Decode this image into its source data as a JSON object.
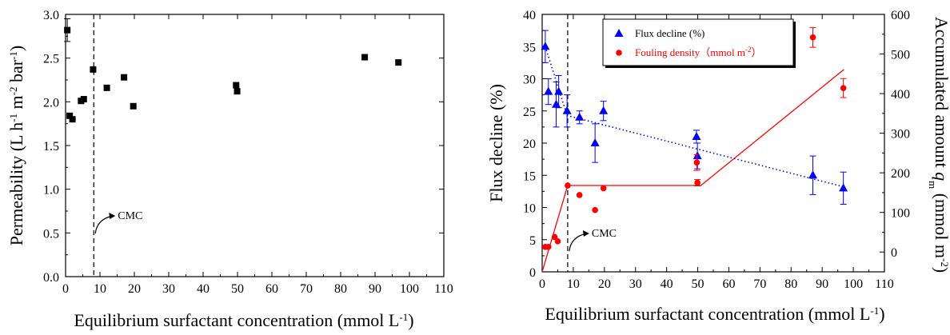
{
  "chart_data": [
    {
      "type": "scatter",
      "xlabel": "Equilibrium surfactant concentration (mmol L",
      "xlabel_sup": "-1",
      "xlabel_end": ")",
      "ylabel_parts": [
        "Permeability (L h",
        "-1",
        " m",
        "-2",
        " bar",
        "-1",
        ")"
      ],
      "xlim": [
        0,
        110
      ],
      "ylim": [
        0,
        3.0
      ],
      "x_ticks": [
        0,
        10,
        20,
        30,
        40,
        50,
        60,
        70,
        80,
        90,
        100,
        110
      ],
      "y_ticks": [
        "0.0",
        "0.5",
        "1.0",
        "1.5",
        "2.0",
        "2.5",
        "3.0"
      ],
      "cmc_x": 8.2,
      "annotation": "CMC",
      "series": [
        {
          "marker": "square",
          "color": "#000000",
          "points": [
            {
              "x": 0.5,
              "y": 2.82,
              "err": 0.13
            },
            {
              "x": 1.2,
              "y": 1.84
            },
            {
              "x": 2.0,
              "y": 1.8
            },
            {
              "x": 4.5,
              "y": 2.01
            },
            {
              "x": 5.3,
              "y": 2.03
            },
            {
              "x": 8.0,
              "y": 2.37
            },
            {
              "x": 12.0,
              "y": 2.16
            },
            {
              "x": 17.0,
              "y": 2.28
            },
            {
              "x": 19.7,
              "y": 1.95
            },
            {
              "x": 49.6,
              "y": 2.19
            },
            {
              "x": 49.9,
              "y": 2.12
            },
            {
              "x": 87.0,
              "y": 2.51
            },
            {
              "x": 96.8,
              "y": 2.45
            }
          ]
        }
      ]
    },
    {
      "type": "scatter",
      "xlabel": "Equilibrium surfactant concentration (mmol L",
      "xlabel_sup": "-1",
      "xlabel_end": ")",
      "ylabel": "Flux decline (%)",
      "y2label_parts": [
        "Accumulated amount ",
        "q",
        "m",
        " (mmol m",
        "-2",
        ")"
      ],
      "xlim": [
        0,
        110
      ],
      "ylim": [
        0,
        40
      ],
      "y2lim": [
        -50,
        600
      ],
      "x_ticks": [
        0,
        10,
        20,
        30,
        40,
        50,
        60,
        70,
        80,
        90,
        100,
        110
      ],
      "y_ticks": [
        0,
        5,
        10,
        15,
        20,
        25,
        30,
        35,
        40
      ],
      "y2_ticks": [
        0,
        100,
        200,
        300,
        400,
        500,
        600
      ],
      "cmc_x": 8.2,
      "annotation": "CMC",
      "legend": {
        "position": "top-center",
        "entries": [
          {
            "label": "Flux decline (%)",
            "color": "#0000ff",
            "marker": "triangle"
          },
          {
            "label_parts": [
              "Fouling density（mmol m",
              "-2",
              "）"
            ],
            "color": "#ff0000",
            "marker": "circle"
          }
        ]
      },
      "series": [
        {
          "name": "Flux decline (%)",
          "axis": "left",
          "marker": "triangle",
          "color": "#0000ff",
          "points": [
            {
              "x": 1.0,
              "y": 35.0,
              "err": 2.5
            },
            {
              "x": 2.0,
              "y": 28.0,
              "err": 2.0
            },
            {
              "x": 4.5,
              "y": 26.0,
              "err": 3.5
            },
            {
              "x": 5.3,
              "y": 28.0,
              "err": 2.5
            },
            {
              "x": 8.0,
              "y": 25.0,
              "err": 2.5
            },
            {
              "x": 12.0,
              "y": 24.0,
              "err": 1.0
            },
            {
              "x": 17.0,
              "y": 20.0,
              "err": 3.0
            },
            {
              "x": 19.7,
              "y": 25.0,
              "err": 1.5
            },
            {
              "x": 49.6,
              "y": 21.0,
              "err": 1.0
            },
            {
              "x": 49.9,
              "y": 18.0,
              "err": 2.0
            },
            {
              "x": 87.0,
              "y": 15.0,
              "err": 3.0
            },
            {
              "x": 96.8,
              "y": 13.0,
              "err": 2.5
            }
          ]
        },
        {
          "name": "Fouling density（mmol m-2）",
          "axis": "right",
          "marker": "circle",
          "color": "#ff0000",
          "points": [
            {
              "x": 1.0,
              "y": 13
            },
            {
              "x": 2.0,
              "y": 13
            },
            {
              "x": 4.0,
              "y": 38
            },
            {
              "x": 5.0,
              "y": 27
            },
            {
              "x": 8.2,
              "y": 168
            },
            {
              "x": 12.0,
              "y": 144
            },
            {
              "x": 17.0,
              "y": 106
            },
            {
              "x": 19.7,
              "y": 161
            },
            {
              "x": 49.7,
              "y": 226,
              "err": 20
            },
            {
              "x": 49.9,
              "y": 175,
              "err": 8
            },
            {
              "x": 87.0,
              "y": 542,
              "err": 25
            },
            {
              "x": 96.8,
              "y": 414,
              "err": 24
            }
          ]
        }
      ],
      "fit_lines": [
        {
          "axis": "right",
          "color": "#ff0000",
          "style": "solid",
          "points": [
            [
              0,
              -50
            ],
            [
              8.2,
              168
            ],
            [
              51,
              168
            ],
            [
              97,
              461
            ]
          ]
        },
        {
          "axis": "left",
          "color": "#0000ff",
          "style": "dotted",
          "points": [
            [
              1,
              35
            ],
            [
              8,
              24.3
            ],
            [
              97,
              13.2
            ]
          ]
        }
      ]
    }
  ]
}
